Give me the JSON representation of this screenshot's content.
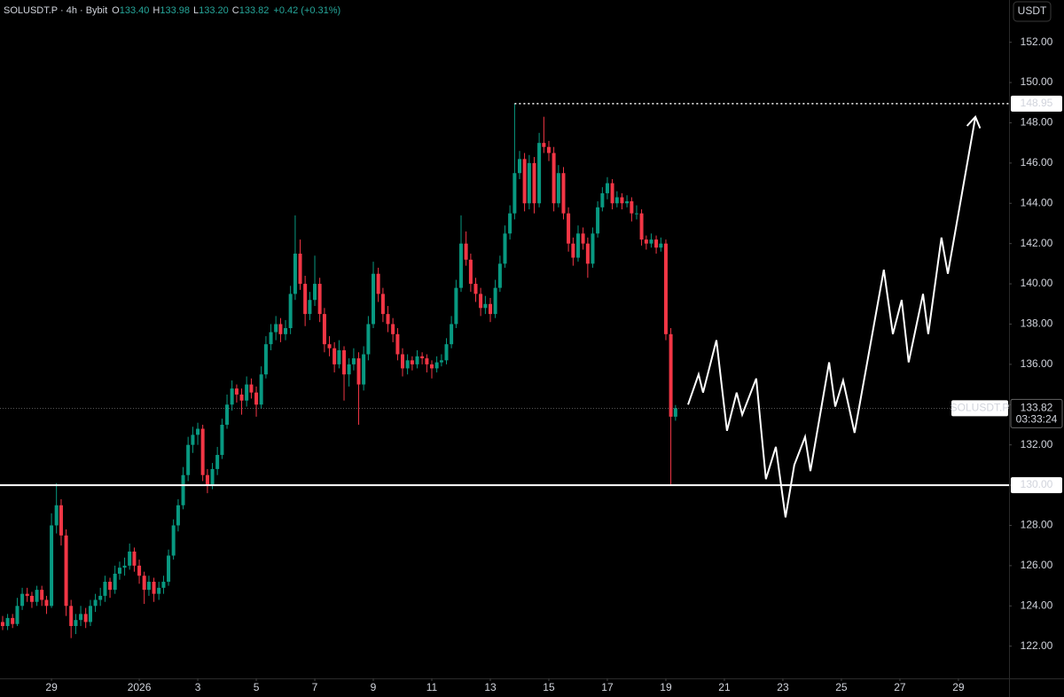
{
  "chart_data": {
    "type": "candlestick",
    "title": "SOLUSDT.P · 4h · Bybit",
    "legend_values": {
      "labels": [
        "O",
        "H",
        "L",
        "C"
      ],
      "value_labels": [
        "133.40",
        "133.98",
        "133.20",
        "133.82"
      ],
      "change": "+0.42 (+0.31%)"
    },
    "currency_button": "USDT",
    "up_color": "#089981",
    "down_color": "#f23645",
    "grid": false,
    "xlim": [
      27.24,
      61.73
    ],
    "ylim": [
      120.4,
      154.1
    ],
    "xticks": [
      29,
      {
        "value": 32,
        "label": "2026"
      },
      {
        "value": 34,
        "label": "3"
      },
      {
        "value": 36,
        "label": "5"
      },
      {
        "value": 38,
        "label": "7"
      },
      {
        "value": 40,
        "label": "9"
      },
      {
        "value": 42,
        "label": "11"
      },
      {
        "value": 44,
        "label": "13"
      },
      {
        "value": 46,
        "label": "15"
      },
      {
        "value": 48,
        "label": "17"
      },
      {
        "value": 50,
        "label": "19"
      },
      {
        "value": 52,
        "label": "21"
      },
      {
        "value": 54,
        "label": "23"
      },
      {
        "value": 56,
        "label": "25"
      },
      {
        "value": 58,
        "label": "27"
      },
      {
        "value": 60,
        "label": "29"
      }
    ],
    "yticks": [
      {
        "value": 122,
        "label": "122.00"
      },
      {
        "value": 124,
        "label": "124.00"
      },
      {
        "value": 126,
        "label": "126.00"
      },
      {
        "value": 128,
        "label": "128.00"
      },
      {
        "value": 130,
        "label": "130.00"
      },
      {
        "value": 132,
        "label": "132.00"
      },
      {
        "value": 134,
        "label": "134.00"
      },
      {
        "value": 136,
        "label": "136.00"
      },
      {
        "value": 138,
        "label": "138.00"
      },
      {
        "value": 140,
        "label": "140.00"
      },
      {
        "value": 142,
        "label": "142.00"
      },
      {
        "value": 144,
        "label": "144.00"
      },
      {
        "value": 146,
        "label": "146.00"
      },
      {
        "value": 148,
        "label": "148.00"
      },
      {
        "value": 150,
        "label": "150.00"
      },
      {
        "value": 152,
        "label": "152.00"
      }
    ],
    "x": [
      27.33,
      27.5,
      27.67,
      27.83,
      28,
      28.17,
      28.33,
      28.5,
      28.67,
      28.83,
      29,
      29.17,
      29.33,
      29.5,
      29.67,
      29.83,
      30,
      30.17,
      30.33,
      30.5,
      30.67,
      30.83,
      31,
      31.17,
      31.33,
      31.5,
      31.67,
      31.83,
      32,
      32.17,
      32.33,
      32.5,
      32.67,
      32.83,
      33,
      33.17,
      33.33,
      33.5,
      33.67,
      33.83,
      34,
      34.17,
      34.33,
      34.5,
      34.67,
      34.83,
      35,
      35.17,
      35.33,
      35.5,
      35.67,
      35.83,
      36,
      36.17,
      36.33,
      36.5,
      36.67,
      36.83,
      37,
      37.17,
      37.33,
      37.5,
      37.67,
      37.83,
      38,
      38.17,
      38.33,
      38.5,
      38.67,
      38.83,
      39,
      39.17,
      39.33,
      39.5,
      39.67,
      39.83,
      40,
      40.17,
      40.33,
      40.5,
      40.67,
      40.83,
      41,
      41.17,
      41.33,
      41.5,
      41.67,
      41.83,
      42,
      42.17,
      42.33,
      42.5,
      42.67,
      42.83,
      43,
      43.17,
      43.33,
      43.5,
      43.67,
      43.83,
      44,
      44.17,
      44.33,
      44.5,
      44.67,
      44.83,
      45,
      45.17,
      45.33,
      45.5,
      45.67,
      45.83,
      46,
      46.17,
      46.33,
      46.5,
      46.67,
      46.83,
      47,
      47.17,
      47.33,
      47.5,
      47.67,
      47.83,
      48,
      48.17,
      48.33,
      48.5,
      48.67,
      48.83,
      49,
      49.17,
      49.33,
      49.5,
      49.67,
      49.83,
      50,
      50.17,
      50.33
    ],
    "ohlc": [
      [
        123.2,
        123.5,
        122.8,
        123.0
      ],
      [
        123.0,
        123.6,
        122.8,
        123.4
      ],
      [
        123.4,
        123.6,
        122.9,
        123.1
      ],
      [
        123.1,
        124.4,
        123.0,
        124.0
      ],
      [
        124.0,
        124.9,
        123.8,
        124.6
      ],
      [
        124.6,
        124.9,
        124.2,
        124.5
      ],
      [
        124.5,
        124.7,
        123.9,
        124.2
      ],
      [
        124.2,
        125.0,
        124.0,
        124.8
      ],
      [
        124.8,
        125.0,
        124.0,
        124.3
      ],
      [
        124.3,
        124.5,
        123.6,
        124.0
      ],
      [
        124.0,
        128.6,
        123.9,
        128.0
      ],
      [
        128.0,
        130.1,
        127.6,
        129.0
      ],
      [
        129.0,
        129.3,
        127.0,
        127.5
      ],
      [
        127.5,
        127.8,
        123.5,
        124.0
      ],
      [
        124.0,
        124.3,
        122.4,
        123.0
      ],
      [
        123.0,
        123.6,
        122.6,
        123.3
      ],
      [
        123.3,
        124.0,
        123.0,
        123.6
      ],
      [
        123.6,
        123.9,
        122.9,
        123.2
      ],
      [
        123.2,
        124.3,
        123.0,
        124.0
      ],
      [
        124.0,
        124.6,
        123.7,
        124.3
      ],
      [
        124.3,
        124.9,
        124.0,
        124.5
      ],
      [
        124.5,
        125.5,
        124.2,
        125.2
      ],
      [
        125.2,
        125.4,
        124.4,
        124.8
      ],
      [
        124.8,
        126.0,
        124.6,
        125.6
      ],
      [
        125.6,
        126.2,
        125.3,
        125.9
      ],
      [
        125.9,
        126.4,
        125.5,
        126.0
      ],
      [
        126.0,
        127.1,
        125.8,
        126.7
      ],
      [
        126.7,
        126.9,
        125.7,
        126.0
      ],
      [
        126.0,
        126.3,
        125.1,
        125.5
      ],
      [
        125.5,
        125.7,
        124.1,
        124.8
      ],
      [
        124.8,
        125.5,
        124.5,
        125.2
      ],
      [
        125.2,
        125.4,
        124.2,
        124.6
      ],
      [
        124.6,
        125.2,
        124.3,
        124.9
      ],
      [
        124.9,
        125.5,
        124.6,
        125.2
      ],
      [
        125.2,
        126.8,
        125.0,
        126.5
      ],
      [
        126.5,
        128.3,
        126.3,
        128.0
      ],
      [
        128.0,
        129.3,
        127.7,
        129.0
      ],
      [
        129.0,
        130.9,
        128.8,
        130.5
      ],
      [
        130.5,
        132.4,
        130.2,
        132.0
      ],
      [
        132.0,
        132.9,
        131.6,
        132.5
      ],
      [
        132.5,
        133.1,
        132.0,
        132.8
      ],
      [
        132.8,
        133.0,
        130.2,
        130.5
      ],
      [
        130.5,
        130.8,
        129.6,
        130.0
      ],
      [
        130.0,
        131.1,
        129.8,
        130.8
      ],
      [
        130.8,
        131.9,
        130.5,
        131.5
      ],
      [
        131.5,
        133.3,
        131.3,
        133.0
      ],
      [
        133.0,
        134.5,
        132.8,
        134.0
      ],
      [
        134.0,
        135.2,
        133.7,
        134.8
      ],
      [
        134.8,
        135.0,
        134.1,
        134.5
      ],
      [
        134.5,
        134.8,
        133.5,
        134.2
      ],
      [
        134.2,
        135.4,
        133.9,
        135.0
      ],
      [
        135.0,
        135.3,
        134.3,
        134.6
      ],
      [
        134.6,
        134.9,
        133.4,
        134.0
      ],
      [
        134.0,
        135.9,
        133.8,
        135.5
      ],
      [
        135.5,
        137.4,
        135.3,
        137.0
      ],
      [
        137.0,
        138.0,
        136.7,
        137.6
      ],
      [
        137.6,
        138.4,
        137.2,
        138.0
      ],
      [
        138.0,
        138.3,
        137.1,
        137.5
      ],
      [
        137.5,
        138.2,
        137.2,
        137.8
      ],
      [
        137.8,
        139.9,
        137.5,
        139.5
      ],
      [
        139.5,
        143.4,
        139.2,
        141.5
      ],
      [
        141.5,
        142.2,
        139.7,
        140.0
      ],
      [
        140.0,
        140.4,
        137.9,
        138.5
      ],
      [
        138.5,
        139.6,
        138.2,
        139.2
      ],
      [
        139.2,
        141.4,
        138.9,
        140.0
      ],
      [
        140.0,
        140.3,
        138.1,
        138.5
      ],
      [
        138.5,
        138.8,
        136.6,
        137.0
      ],
      [
        137.0,
        137.4,
        136.4,
        136.8
      ],
      [
        136.8,
        137.1,
        135.6,
        136.0
      ],
      [
        136.0,
        137.2,
        135.8,
        136.7
      ],
      [
        136.7,
        136.9,
        134.2,
        135.5
      ],
      [
        135.5,
        136.3,
        134.9,
        136.0
      ],
      [
        136.0,
        136.8,
        135.7,
        136.3
      ],
      [
        136.3,
        136.6,
        133.0,
        135.0
      ],
      [
        135.0,
        136.9,
        134.7,
        136.5
      ],
      [
        136.5,
        138.4,
        136.2,
        138.0
      ],
      [
        138.0,
        141.1,
        137.8,
        140.5
      ],
      [
        140.5,
        140.8,
        139.1,
        139.5
      ],
      [
        139.5,
        139.8,
        138.1,
        138.5
      ],
      [
        138.5,
        138.9,
        137.6,
        138.0
      ],
      [
        138.0,
        138.3,
        137.1,
        137.5
      ],
      [
        137.5,
        137.8,
        136.2,
        136.5
      ],
      [
        136.5,
        136.8,
        135.4,
        135.8
      ],
      [
        135.8,
        136.5,
        135.5,
        136.2
      ],
      [
        136.2,
        136.4,
        135.7,
        136.0
      ],
      [
        136.0,
        136.7,
        135.8,
        136.4
      ],
      [
        136.4,
        136.6,
        136.0,
        136.3
      ],
      [
        136.3,
        136.5,
        135.6,
        136.0
      ],
      [
        136.0,
        136.2,
        135.3,
        135.8
      ],
      [
        135.8,
        136.4,
        135.6,
        136.1
      ],
      [
        136.1,
        136.5,
        135.9,
        136.2
      ],
      [
        136.2,
        137.3,
        136.0,
        137.0
      ],
      [
        137.0,
        138.4,
        136.8,
        138.0
      ],
      [
        138.0,
        140.2,
        137.8,
        139.8
      ],
      [
        139.8,
        143.4,
        139.6,
        142.0
      ],
      [
        142.0,
        142.6,
        140.9,
        141.2
      ],
      [
        141.2,
        141.5,
        139.6,
        140.0
      ],
      [
        140.0,
        140.3,
        139.1,
        139.5
      ],
      [
        139.5,
        139.8,
        138.4,
        138.8
      ],
      [
        138.8,
        139.4,
        138.5,
        139.0
      ],
      [
        139.0,
        139.3,
        138.1,
        138.5
      ],
      [
        138.5,
        140.2,
        138.3,
        139.8
      ],
      [
        139.8,
        141.4,
        139.6,
        141.0
      ],
      [
        141.0,
        142.9,
        140.8,
        142.5
      ],
      [
        142.5,
        143.9,
        142.2,
        143.5
      ],
      [
        143.5,
        148.95,
        143.2,
        145.5
      ],
      [
        145.5,
        146.6,
        145.2,
        146.2
      ],
      [
        146.2,
        146.5,
        143.6,
        144.0
      ],
      [
        144.0,
        146.4,
        143.7,
        146.0
      ],
      [
        146.0,
        146.3,
        143.5,
        144.0
      ],
      [
        144.0,
        147.5,
        143.8,
        147.0
      ],
      [
        147.0,
        148.3,
        146.5,
        146.8
      ],
      [
        146.8,
        147.1,
        146.1,
        146.5
      ],
      [
        146.5,
        146.8,
        143.6,
        144.0
      ],
      [
        144.0,
        145.9,
        143.8,
        145.5
      ],
      [
        145.5,
        145.8,
        143.2,
        143.5
      ],
      [
        143.5,
        143.8,
        141.6,
        142.0
      ],
      [
        142.0,
        142.3,
        140.9,
        141.3
      ],
      [
        141.3,
        142.9,
        141.1,
        142.5
      ],
      [
        142.5,
        142.8,
        141.7,
        142.0
      ],
      [
        142.0,
        142.3,
        140.3,
        141.0
      ],
      [
        141.0,
        142.8,
        140.8,
        142.5
      ],
      [
        142.5,
        144.1,
        142.3,
        143.8
      ],
      [
        143.8,
        144.8,
        143.6,
        144.5
      ],
      [
        144.5,
        145.3,
        144.2,
        145.0
      ],
      [
        145.0,
        145.2,
        143.7,
        144.0
      ],
      [
        144.0,
        144.6,
        143.8,
        144.3
      ],
      [
        144.3,
        144.5,
        143.7,
        144.0
      ],
      [
        144.0,
        144.4,
        143.8,
        144.1
      ],
      [
        144.1,
        144.3,
        143.1,
        143.5
      ],
      [
        143.5,
        143.9,
        143.2,
        143.5
      ],
      [
        143.5,
        143.7,
        141.9,
        142.2
      ],
      [
        142.2,
        142.4,
        141.7,
        142.0
      ],
      [
        142.0,
        142.5,
        141.8,
        142.2
      ],
      [
        142.2,
        142.4,
        141.5,
        141.8
      ],
      [
        141.8,
        142.3,
        141.6,
        142.0
      ],
      [
        142.0,
        142.2,
        137.2,
        137.5
      ],
      [
        137.5,
        137.8,
        130.0,
        133.4
      ],
      [
        133.4,
        133.98,
        133.2,
        133.82
      ]
    ],
    "last_price": {
      "value": 133.82,
      "label": "133.82",
      "symbol": "SOLUSDT.P",
      "countdown": "03:33:24"
    },
    "levels": [
      {
        "value": 130,
        "label": "130.00",
        "style": "solid",
        "color": "#ffffff"
      },
      {
        "value": 148.95,
        "label": "148.95",
        "style": "dotted",
        "color": "#ffffff",
        "x_from": 44.83
      }
    ],
    "projection": {
      "color": "#ffffff",
      "x": [
        50.76,
        51.12,
        51.27,
        51.73,
        52.09,
        52.42,
        52.61,
        53.09,
        53.42,
        53.76,
        54.09,
        54.39,
        54.76,
        54.94,
        55.58,
        55.79,
        56.06,
        56.45,
        57.45,
        57.76,
        58.06,
        58.3,
        58.79,
        58.97,
        59.42,
        59.64,
        60.58
      ],
      "values": [
        134.0,
        135.5,
        134.6,
        137.2,
        132.7,
        134.6,
        133.5,
        135.3,
        130.3,
        131.9,
        128.4,
        131.0,
        132.4,
        130.7,
        136.1,
        133.9,
        135.2,
        132.6,
        140.7,
        137.5,
        139.2,
        136.1,
        139.5,
        137.5,
        142.3,
        140.5,
        148.3
      ]
    }
  }
}
